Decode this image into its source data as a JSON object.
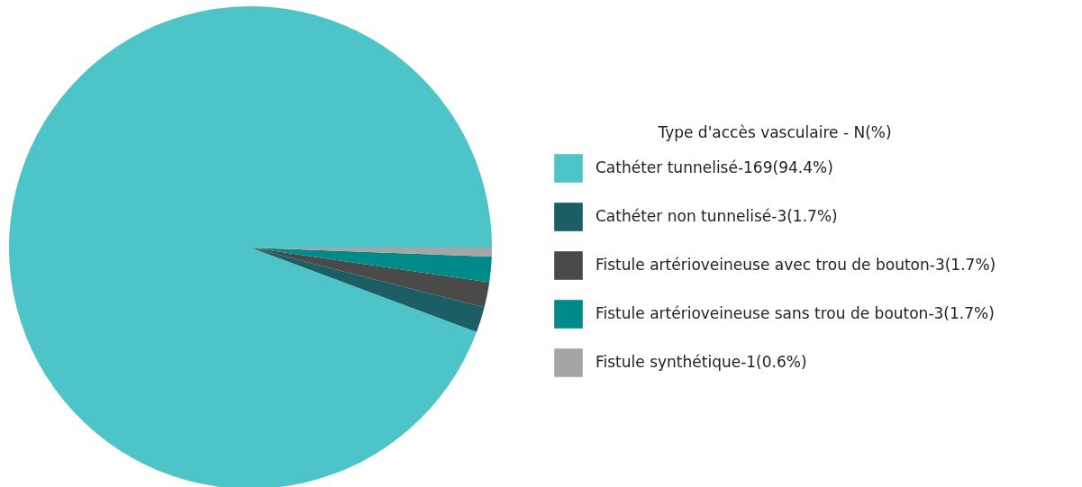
{
  "chart_data": {
    "type": "pie",
    "legend_title": "Type d'accès vasculaire - N(%)",
    "legend": "right",
    "categories": [
      "Cathéter tunnelisé-169(94.4%)",
      "Cathéter non tunnelisé-3(1.7%)",
      "Fistule artérioveineuse avec trou de bouton-3(1.7%)",
      "Fistule artérioveineuse sans trou de bouton-3(1.7%)",
      "Fistule synthétique-1(0.6%)"
    ],
    "values": [
      94.4,
      1.7,
      1.7,
      1.7,
      0.6
    ],
    "colors": [
      "#4dc5c8",
      "#1b5e63",
      "#4a4a4a",
      "#008a8a",
      "#a5a5a5"
    ]
  }
}
